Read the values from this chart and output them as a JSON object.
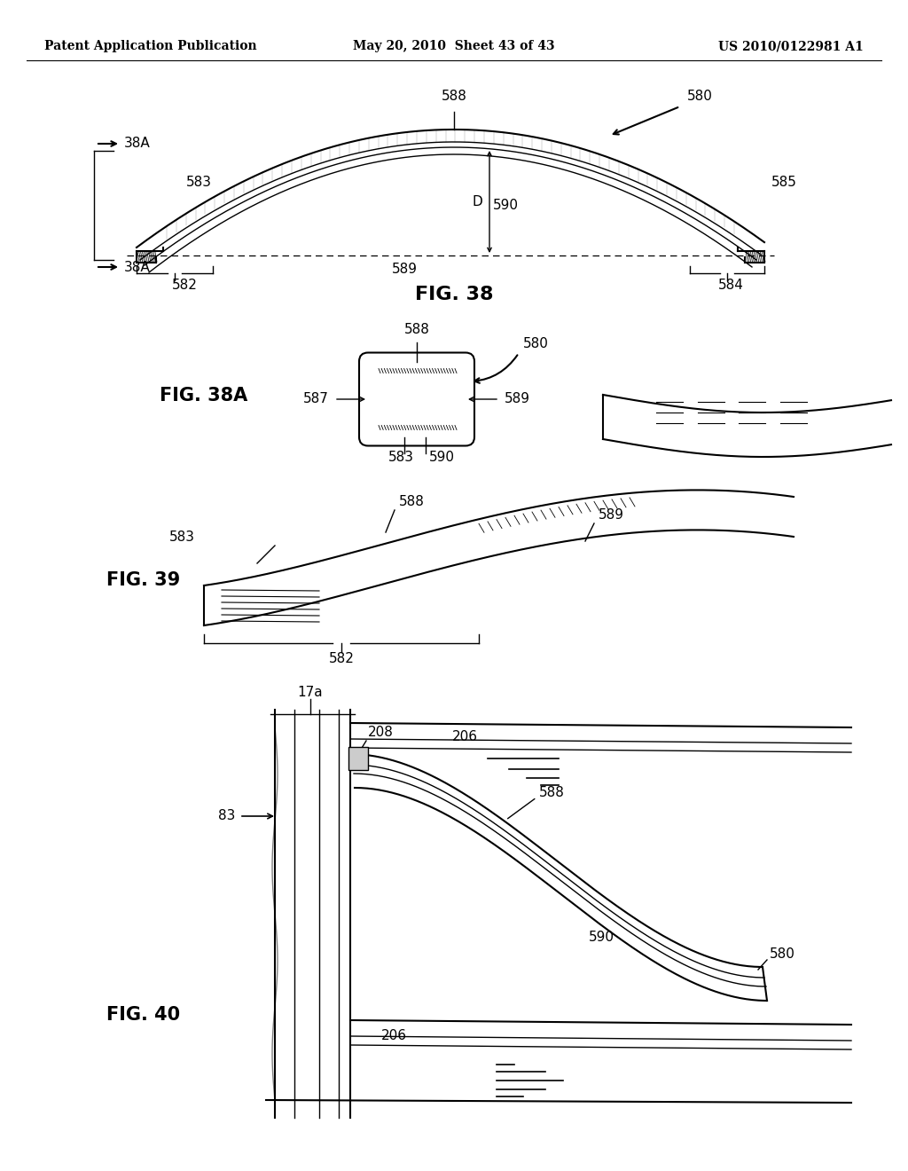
{
  "bg_color": "#ffffff",
  "line_color": "#000000",
  "header_left": "Patent Application Publication",
  "header_mid": "May 20, 2010  Sheet 43 of 43",
  "header_right": "US 2010/0122981 A1",
  "fig38_caption": "FIG. 38",
  "fig38a_caption": "FIG. 38A",
  "fig39_caption": "FIG. 39",
  "fig40_caption": "FIG. 40"
}
